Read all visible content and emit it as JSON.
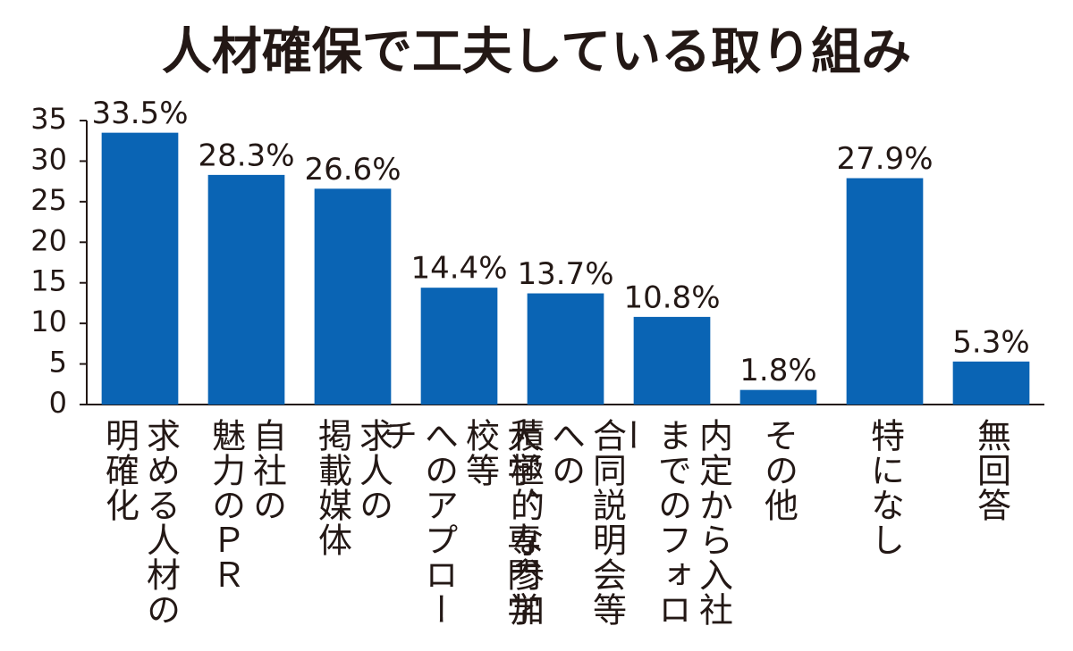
{
  "chart_data": {
    "type": "bar",
    "title": "人材確保で工夫している取り組み",
    "categories": [
      "求める人材の\n明確化",
      "自社の\n魅力のＰＲ",
      "求人の\n掲載媒体",
      "大学、専門学校等\nへのアプローチ",
      "合同説明会等への\n積極的な参加",
      "内定から入社\nまでのフォロー",
      "その他",
      "特になし",
      "無回答"
    ],
    "values": [
      33.5,
      28.3,
      26.6,
      14.4,
      13.7,
      10.8,
      1.8,
      27.9,
      5.3
    ],
    "value_labels": [
      "33.5%",
      "28.3%",
      "26.6%",
      "14.4%",
      "13.7%",
      "10.8%",
      "1.8%",
      "27.9%",
      "5.3%"
    ],
    "color": "#0a64b4",
    "ylim": [
      0,
      35
    ],
    "yticks": [
      0,
      5,
      10,
      15,
      20,
      25,
      30,
      35
    ],
    "grid": false
  }
}
